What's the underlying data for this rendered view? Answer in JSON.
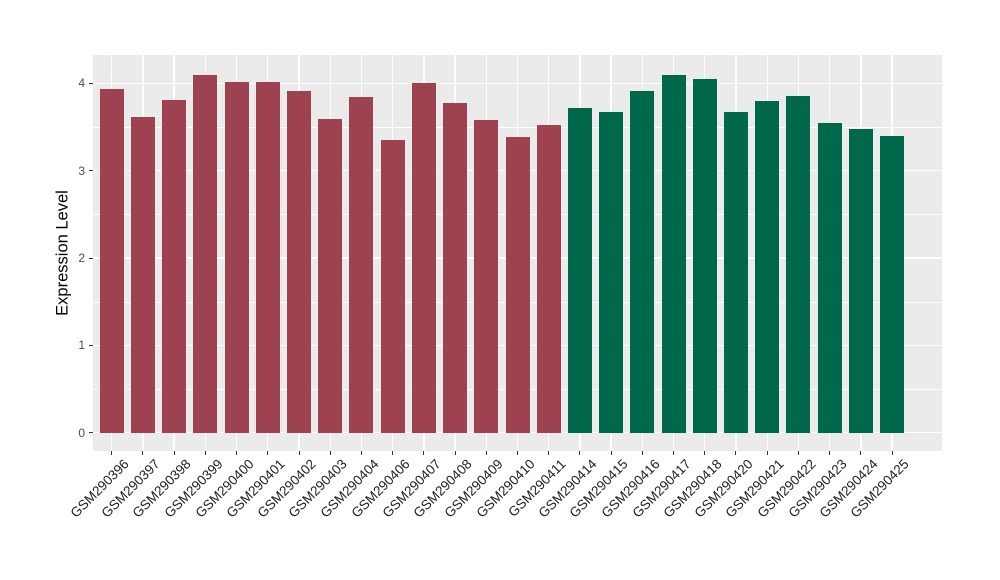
{
  "chart_data": {
    "type": "bar",
    "title": "",
    "xlabel": "",
    "ylabel": "Expression Level",
    "ylim": [
      0,
      4.32
    ],
    "yticks": [
      0,
      1,
      2,
      3,
      4
    ],
    "yminor": [
      0.5,
      1.5,
      2.5,
      3.5
    ],
    "grid": "on",
    "legend_position": "none",
    "panel_background": "#EBEBEB",
    "grid_color": "#FFFFFF",
    "tick_color": "#333333",
    "axis_text_color": "#4d4d4d",
    "categories": [
      "GSM290396",
      "GSM290397",
      "GSM290398",
      "GSM290399",
      "GSM290400",
      "GSM290401",
      "GSM290402",
      "GSM290403",
      "GSM290404",
      "GSM290406",
      "GSM290407",
      "GSM290408",
      "GSM290409",
      "GSM290410",
      "GSM290411",
      "GSM290414",
      "GSM290415",
      "GSM290416",
      "GSM290417",
      "GSM290418",
      "GSM290420",
      "GSM290421",
      "GSM290422",
      "GSM290423",
      "GSM290424",
      "GSM290425"
    ],
    "values": [
      3.94,
      3.61,
      3.81,
      4.1,
      4.02,
      4.02,
      3.91,
      3.59,
      3.84,
      3.35,
      4.0,
      3.78,
      3.58,
      3.39,
      3.52,
      3.72,
      3.67,
      3.91,
      4.09,
      4.05,
      3.67,
      3.8,
      3.85,
      3.54,
      3.48,
      3.4
    ],
    "groups": [
      "group1",
      "group1",
      "group1",
      "group1",
      "group1",
      "group1",
      "group1",
      "group1",
      "group1",
      "group1",
      "group1",
      "group1",
      "group1",
      "group1",
      "group1",
      "group2",
      "group2",
      "group2",
      "group2",
      "group2",
      "group2",
      "group2",
      "group2",
      "group2",
      "group2",
      "group2"
    ],
    "group_colors": {
      "group1": "#9E4251",
      "group2": "#00684A"
    }
  }
}
